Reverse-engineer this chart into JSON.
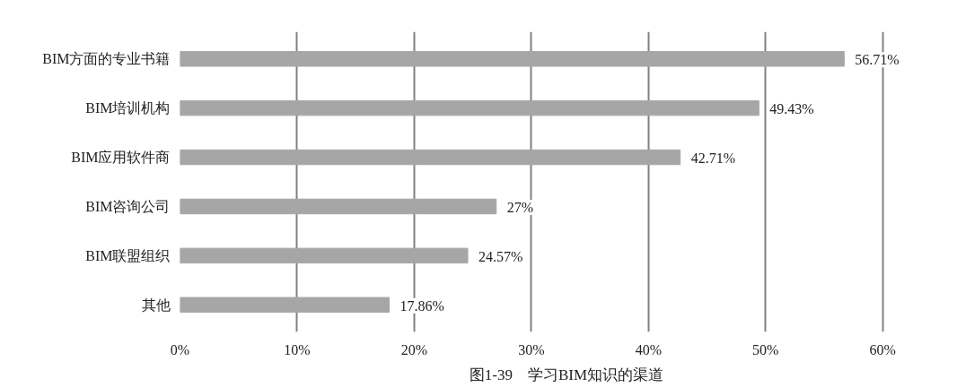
{
  "chart_data": {
    "type": "bar",
    "orientation": "horizontal",
    "title": "图1-39　学习BIM知识的渠道",
    "categories": [
      "BIM方面的专业书籍",
      "BIM培训机构",
      "BIM应用软件商",
      "BIM咨询公司",
      "BIM联盟组织",
      "其他"
    ],
    "values": [
      56.71,
      49.43,
      42.71,
      27,
      24.57,
      17.86
    ],
    "value_labels": [
      "56.71%",
      "49.43%",
      "42.71%",
      "27%",
      "24.57%",
      "17.86%"
    ],
    "color": "#a6a6a6",
    "xlim": [
      0,
      60
    ],
    "xticks": [
      {
        "value": 0,
        "label": "0%"
      },
      {
        "value": 10,
        "label": "10%"
      },
      {
        "value": 20,
        "label": "20%"
      },
      {
        "value": 30,
        "label": "30%"
      },
      {
        "value": 40,
        "label": "40%"
      },
      {
        "value": 50,
        "label": "50%"
      },
      {
        "value": 60,
        "label": "60%"
      }
    ],
    "grid": "x"
  }
}
